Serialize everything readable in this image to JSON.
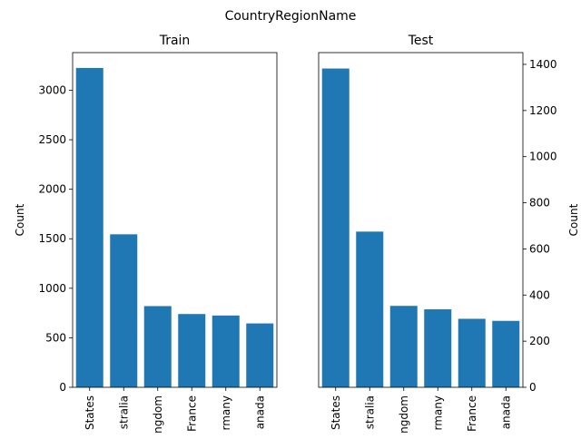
{
  "suptitle": "CountryRegionName",
  "chart_data": [
    {
      "type": "bar",
      "title": "Train",
      "ylabel": "Count",
      "xlabel": "",
      "categories": [
        "States",
        "stralia",
        "ngdom",
        "France",
        "rmany",
        "anada"
      ],
      "values": [
        3225,
        1545,
        820,
        740,
        725,
        645
      ],
      "ylim": [
        0,
        3380
      ],
      "yticks": [
        0,
        500,
        1000,
        1500,
        2000,
        2500,
        3000
      ],
      "yaxis_side": "left",
      "color": "#1f77b4"
    },
    {
      "type": "bar",
      "title": "Test",
      "ylabel": "Count",
      "xlabel": "",
      "categories": [
        "States",
        "stralia",
        "ngdom",
        "rmany",
        "France",
        "anada"
      ],
      "values": [
        1382,
        675,
        353,
        338,
        297,
        288
      ],
      "ylim": [
        0,
        1451
      ],
      "yticks": [
        0,
        200,
        400,
        600,
        800,
        1000,
        1200,
        1400
      ],
      "yaxis_side": "right",
      "color": "#1f77b4"
    }
  ]
}
